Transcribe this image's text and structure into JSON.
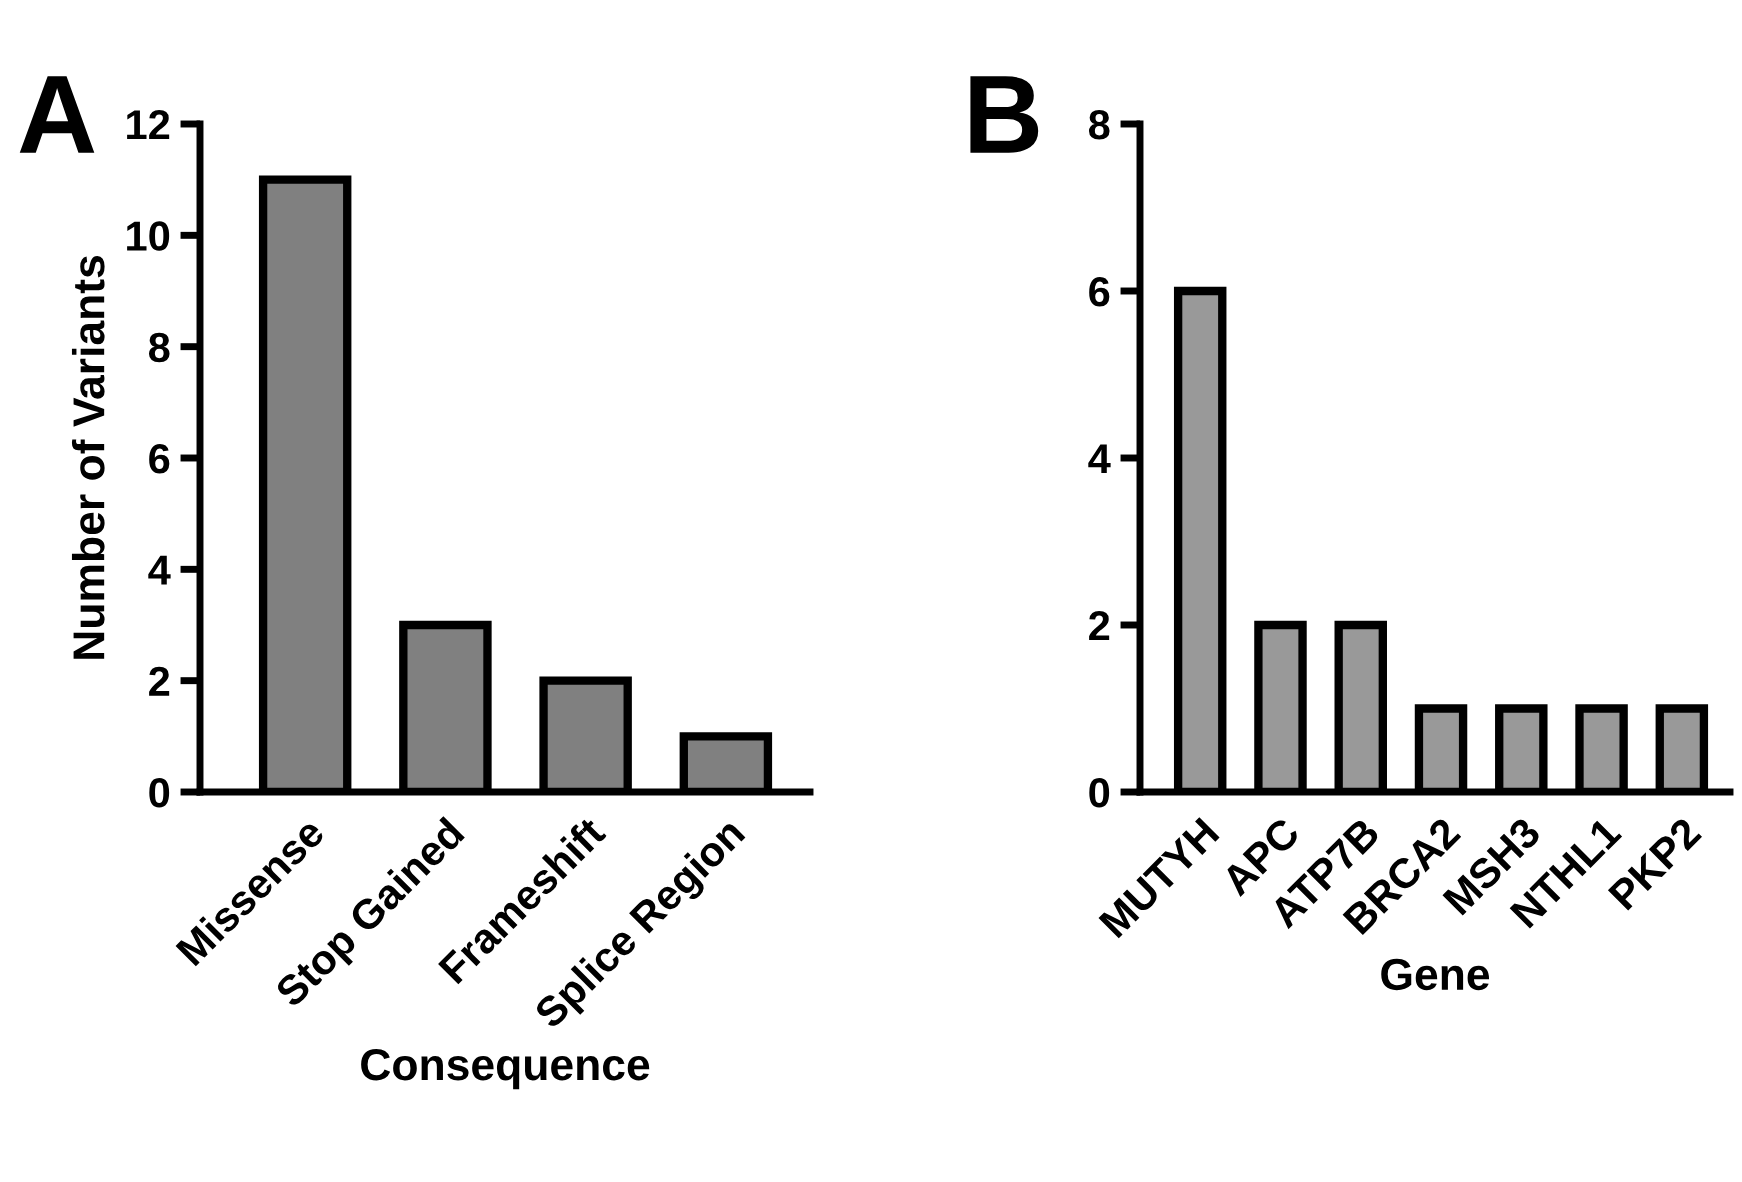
{
  "chart_data": [
    {
      "type": "bar",
      "xlabel": "Consequence",
      "ylabel": "Number of Variants",
      "annotations": [
        "A"
      ],
      "categories": [
        "Missense",
        "Stop Gained",
        "Frameshift",
        "Splice Region"
      ],
      "values": [
        11,
        3,
        2,
        1
      ],
      "color": "#808080",
      "ylim": [
        0,
        12
      ],
      "yticks": [
        0,
        2,
        4,
        6,
        8,
        10,
        12
      ],
      "grid": false,
      "legend": false
    },
    {
      "type": "bar",
      "xlabel": "Gene",
      "annotations": [
        "B"
      ],
      "categories": [
        "MUTYH",
        "APC",
        "ATP7B",
        "BRCA2",
        "MSH3",
        "NTHL1",
        "PKP2"
      ],
      "values": [
        6,
        2,
        2,
        1,
        1,
        1,
        1
      ],
      "color": "#999999",
      "ylim": [
        0,
        8
      ],
      "yticks": [
        0,
        2,
        4,
        6,
        8
      ],
      "grid": false,
      "legend": false
    }
  ]
}
